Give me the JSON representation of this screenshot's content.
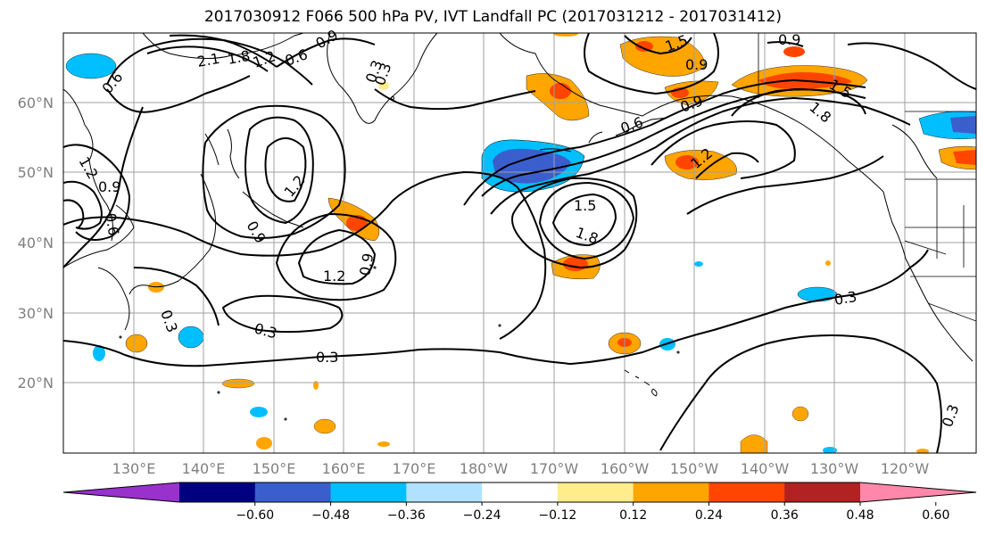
{
  "title": "2017030912 F066 500 hPa PV, IVT Landfall PC (2017031212 - 2017031412)",
  "map": {
    "lat_labels": [
      "60°N",
      "50°N",
      "40°N",
      "30°N",
      "20°N"
    ],
    "lon_labels": [
      "130°E",
      "140°E",
      "150°E",
      "160°E",
      "170°E",
      "180°W",
      "170°W",
      "160°W",
      "150°W",
      "140°W",
      "130°W",
      "120°W"
    ],
    "grid_color": "#a0a0a0",
    "coast_color": "#000000"
  },
  "contour_labels": [
    "2.1",
    "1.8",
    "1.2",
    "0.6",
    "0.9",
    "0.3",
    "0.6",
    "0.9",
    "1.2",
    "0.6",
    "0.9",
    "1.2",
    "1.2",
    "0.3",
    "0.3",
    "0.3",
    "0.9",
    "1.5",
    "1.8",
    "1.5",
    "0.9",
    "1.2",
    "0.9",
    "1.5",
    "1.8",
    "0.9",
    "0.6",
    "0.3",
    "0.3",
    "0.3"
  ],
  "colorbar": {
    "ticks": [
      "−0.60",
      "−0.48",
      "−0.36",
      "−0.24",
      "−0.12",
      "0.12",
      "0.24",
      "0.36",
      "0.48",
      "0.60"
    ],
    "colors": [
      "#9932cc",
      "#000080",
      "#3a5fcd",
      "#00bfff",
      "#b0e2ff",
      "#ffffff",
      "#ffec8b",
      "#ffa500",
      "#ff4500",
      "#b22222",
      "#ff88aa"
    ]
  }
}
